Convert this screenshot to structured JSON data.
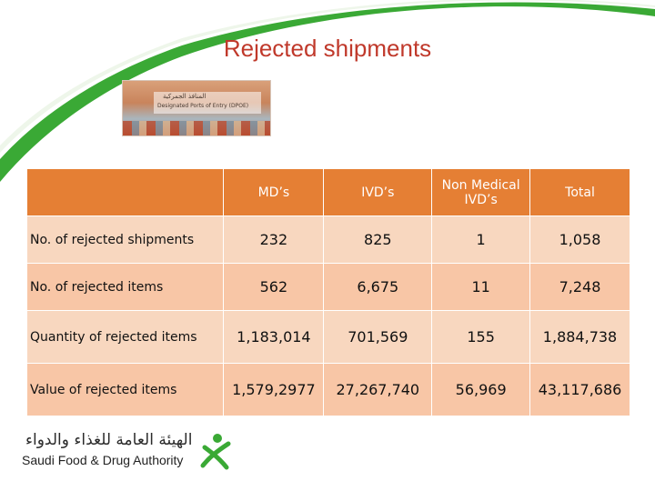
{
  "slide": {
    "title": "Rejected shipments",
    "accent_color": "#e57f34",
    "title_color": "#c0392b",
    "brand_green": "#3aa935"
  },
  "photo": {
    "text_arabic": "المنافذ الجمركية",
    "text_english": "Designated Ports of Entry (DPOE)"
  },
  "table": {
    "headers": [
      "",
      "MD’s",
      "IVD’s",
      "Non Medical IVD’s",
      "Total"
    ],
    "rows": [
      {
        "label": "No. of rejected shipments",
        "values": [
          "232",
          "825",
          "1",
          "1,058"
        ]
      },
      {
        "label": "No. of rejected items",
        "values": [
          "562",
          "6,675",
          "11",
          "7,248"
        ]
      },
      {
        "label": "Quantity of rejected items",
        "values": [
          "1,183,014",
          "701,569",
          "155",
          "1,884,738"
        ]
      },
      {
        "label": "Value of rejected items",
        "values": [
          "1,579,2977",
          "27,267,740",
          "56,969",
          "43,117,686"
        ]
      }
    ]
  },
  "logo": {
    "arabic": "الهيئة العامة للغذاء والدواء",
    "english": "Saudi Food & Drug Authority",
    "icon": "sfda-emblem-icon"
  }
}
